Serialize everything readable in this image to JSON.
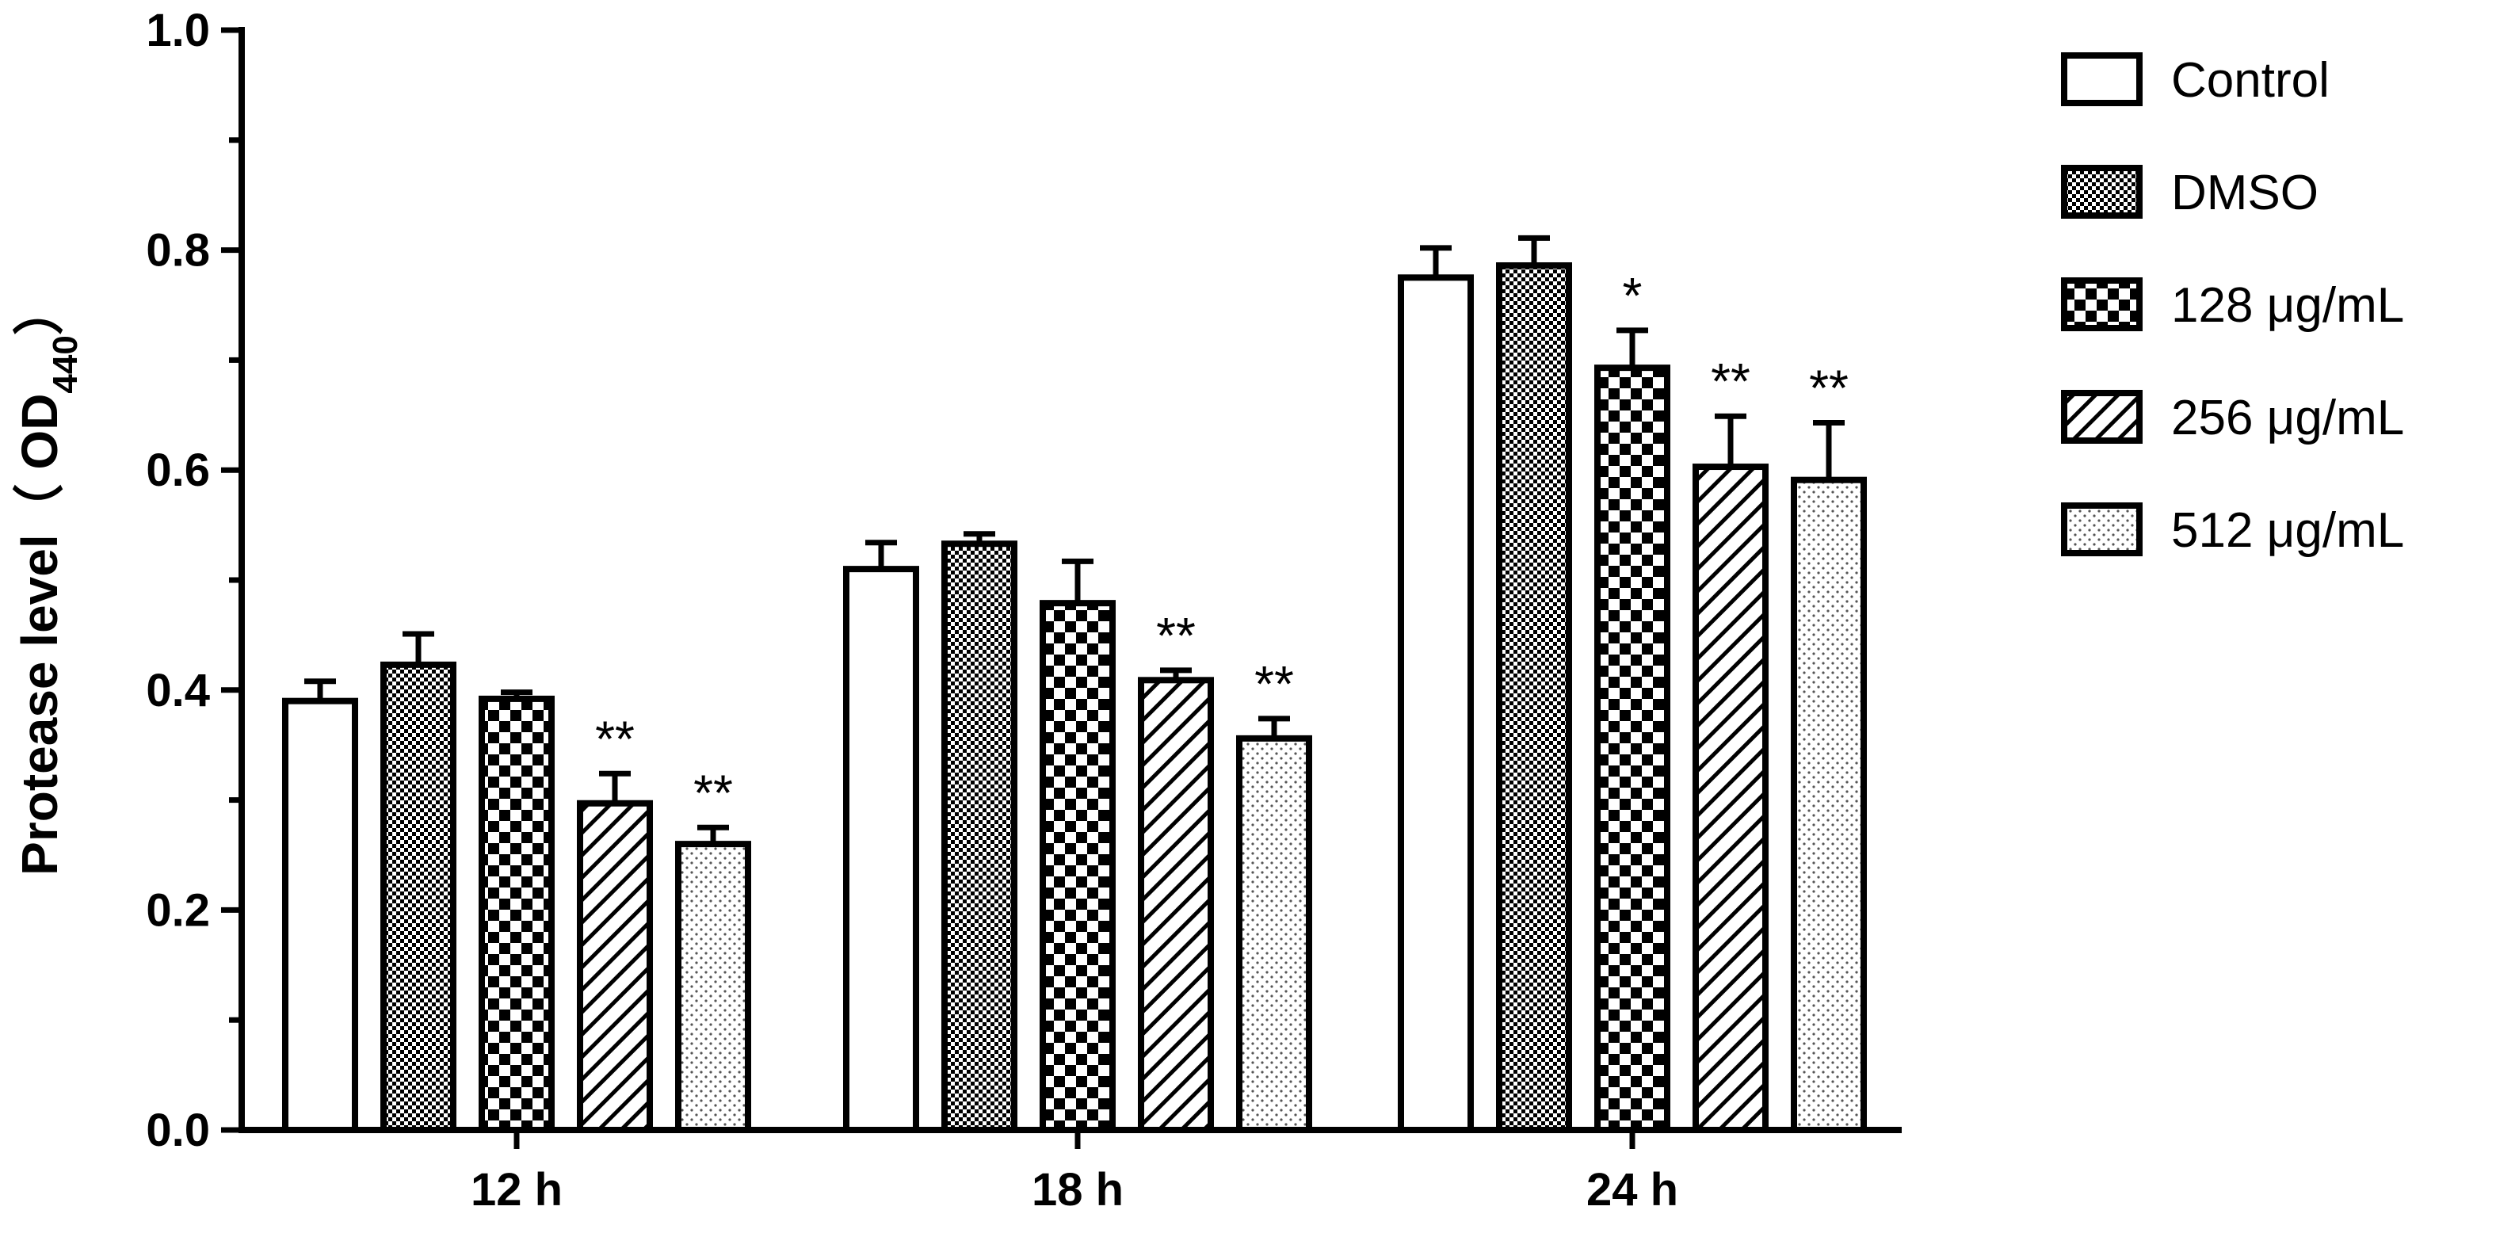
{
  "chart_data": {
    "type": "bar",
    "ylabel": {
      "main": "Protease  level（ OD",
      "sub": "440",
      "close": "）"
    },
    "ylim": [
      0,
      1.0
    ],
    "yticks": [
      "0.0",
      "0.2",
      "0.4",
      "0.6",
      "0.8",
      "1.0"
    ],
    "categories": [
      "12 h",
      "18 h",
      "24 h"
    ],
    "legend_position": "right",
    "grid": false,
    "series": [
      {
        "name": "Control",
        "pattern": "white",
        "values": [
          0.39,
          0.51,
          0.775
        ],
        "errors": [
          0.018,
          0.024,
          0.027
        ],
        "sig": [
          "",
          "",
          ""
        ]
      },
      {
        "name": "DMSO",
        "pattern": "fine-check",
        "values": [
          0.423,
          0.533,
          0.786
        ],
        "errors": [
          0.028,
          0.009,
          0.025
        ],
        "sig": [
          "",
          "",
          ""
        ]
      },
      {
        "name": "128 μg/mL",
        "pattern": "check",
        "values": [
          0.392,
          0.479,
          0.693
        ],
        "errors": [
          0.006,
          0.038,
          0.034
        ],
        "sig": [
          "",
          "",
          "*"
        ]
      },
      {
        "name": "256 μg/mL",
        "pattern": "hatch",
        "values": [
          0.297,
          0.409,
          0.603
        ],
        "errors": [
          0.027,
          0.009,
          0.046
        ],
        "sig": [
          "**",
          "**",
          "**"
        ]
      },
      {
        "name": "512 μg/mL",
        "pattern": "dots",
        "values": [
          0.26,
          0.356,
          0.591
        ],
        "errors": [
          0.015,
          0.018,
          0.052
        ],
        "sig": [
          "**",
          "**",
          "**"
        ]
      }
    ]
  }
}
